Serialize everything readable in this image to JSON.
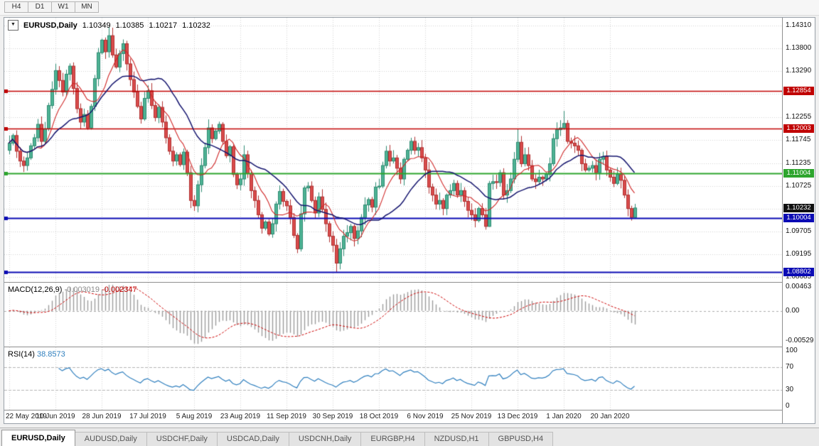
{
  "toolbar": {
    "timeframes": [
      "H4",
      "D1",
      "W1",
      "MN"
    ]
  },
  "chart": {
    "symbol_label": "EURUSD,Daily",
    "open": "1.10349",
    "high": "1.10385",
    "low": "1.10217",
    "close": "1.10232",
    "dropdown_icon": "▼",
    "price_axis_labels": [
      "1.14310",
      "1.13800",
      "1.13290",
      "1.12780",
      "1.12255",
      "1.11745",
      "1.11235",
      "1.10725",
      "1.09705",
      "1.09195",
      "1.08685"
    ],
    "levels": [
      {
        "price": 1.12854,
        "label": "1.12854",
        "color": "#c00000",
        "width": 1.5
      },
      {
        "price": 1.12003,
        "label": "1.12003",
        "color": "#c00000",
        "width": 1.5
      },
      {
        "price": 1.11004,
        "label": "1.11004",
        "color": "#2da52d",
        "width": 2
      },
      {
        "price": 1.10004,
        "label": "1.10004",
        "color": "#0b0bb4",
        "width": 2
      },
      {
        "price": 1.08802,
        "label": "1.08802",
        "color": "#0b0bb4",
        "width": 2
      }
    ],
    "current_price": {
      "price": 1.10232,
      "label": "1.10232",
      "badge_color": "#101010"
    }
  },
  "macd": {
    "name": "MACD(12,26,9)",
    "macd_value": "-0.003019",
    "signal_value": "-0.002347",
    "axis_labels": [
      "0.00463",
      "0.00",
      "-0.00529"
    ],
    "fast": 12,
    "slow": 26,
    "signal": 9,
    "histogram_color": "#9c9c9c",
    "signal_color": "#cc0000"
  },
  "rsi": {
    "name": "RSI(14)",
    "value": "38.8573",
    "axis_labels": [
      "100",
      "70",
      "30",
      "0"
    ],
    "period": 14,
    "levels": [
      70,
      30
    ],
    "line_color": "#2f7fbe"
  },
  "bottom_tabs": [
    {
      "label": "EURUSD,Daily",
      "active": true
    },
    {
      "label": "AUDUSD,Daily",
      "active": false
    },
    {
      "label": "USDCHF,Daily",
      "active": false
    },
    {
      "label": "USDCAD,Daily",
      "active": false
    },
    {
      "label": "USDCNH,Daily",
      "active": false
    },
    {
      "label": "EURGBP,H4",
      "active": false
    },
    {
      "label": "NZDUSD,H1",
      "active": false
    },
    {
      "label": "GBPUSD,H4",
      "active": false
    }
  ],
  "chart_data": {
    "type": "candlestick",
    "symbol": "EURUSD",
    "timeframe": "Daily",
    "ylim": [
      1.0858,
      1.1448
    ],
    "price_gridlines": [
      1.1431,
      1.138,
      1.1329,
      1.1278,
      1.12255,
      1.11745,
      1.11235,
      1.10725,
      1.10215,
      1.09705,
      1.09195,
      1.08685
    ],
    "x_labels": [
      "22 May 2019",
      "10 Jun 2019",
      "28 Jun 2019",
      "17 Jul 2019",
      "5 Aug 2019",
      "23 Aug 2019",
      "11 Sep 2019",
      "30 Sep 2019",
      "18 Oct 2019",
      "6 Nov 2019",
      "25 Nov 2019",
      "13 Dec 2019",
      "1 Jan 2020",
      "20 Jan 2020"
    ],
    "x_label_days": [
      0,
      13,
      26,
      39,
      52,
      65,
      78,
      91,
      104,
      117,
      130,
      143,
      156,
      169
    ],
    "first_open": 1.1152,
    "closes": [
      1.1168,
      1.1185,
      1.115,
      1.1128,
      1.1118,
      1.1135,
      1.1162,
      1.118,
      1.121,
      1.1172,
      1.12,
      1.1252,
      1.1288,
      1.133,
      1.1308,
      1.1282,
      1.1322,
      1.134,
      1.129,
      1.1245,
      1.1215,
      1.1232,
      1.1202,
      1.125,
      1.1312,
      1.137,
      1.1398,
      1.1372,
      1.1408,
      1.1365,
      1.1338,
      1.1368,
      1.139,
      1.1345,
      1.131,
      1.1282,
      1.125,
      1.1222,
      1.1268,
      1.1285,
      1.1252,
      1.1225,
      1.1248,
      1.1215,
      1.118,
      1.115,
      1.1128,
      1.1142,
      1.112,
      1.1148,
      1.1102,
      1.104,
      1.1028,
      1.1075,
      1.1118,
      1.1158,
      1.1202,
      1.1178,
      1.1195,
      1.121,
      1.1172,
      1.114,
      1.116,
      1.1098,
      1.1075,
      1.1088,
      1.1142,
      1.11,
      1.1062,
      1.104,
      1.1008,
      1.0978,
      1.0992,
      1.0965,
      1.0988,
      1.1032,
      1.106,
      1.1038,
      1.1028,
      1.1002,
      1.0962,
      1.0932,
      1.101,
      1.1068,
      1.1072,
      1.104,
      1.1012,
      1.1048,
      1.102,
      1.0988,
      1.096,
      1.094,
      1.09,
      1.0932,
      1.096,
      1.0968,
      1.0982,
      1.0955,
      1.0972,
      1.1002,
      1.103,
      1.1042,
      1.1025,
      1.107,
      1.1072,
      1.1118,
      1.115,
      1.1128,
      1.1135,
      1.1112,
      1.1088,
      1.1132,
      1.1152,
      1.1172,
      1.1152,
      1.1158,
      1.1135,
      1.1108,
      1.107,
      1.1052,
      1.1032,
      1.104,
      1.1022,
      1.1052,
      1.1062,
      1.1078,
      1.1052,
      1.1062,
      1.1038,
      1.1018,
      1.1008,
      1.0995,
      1.1022,
      1.1008,
      1.0982,
      1.1078,
      1.1082,
      1.108,
      1.1102,
      1.1052,
      1.1062,
      1.1088,
      1.1132,
      1.117,
      1.1122,
      1.1142,
      1.1118,
      1.1088,
      1.1082,
      1.1092,
      1.1088,
      1.1098,
      1.1122,
      1.1178,
      1.1198,
      1.1202,
      1.1212,
      1.1172,
      1.1168,
      1.1162,
      1.1152,
      1.1122,
      1.1108,
      1.1112,
      1.1118,
      1.1102,
      1.1132,
      1.1138,
      1.1108,
      1.1092,
      1.1078,
      1.1098,
      1.1085,
      1.1052,
      1.1022,
      1.1002,
      1.10232
    ],
    "wick_overrides": {
      "8": {
        "h": 1.1222
      },
      "17": {
        "h": 1.1346
      },
      "28": {
        "h": 1.1428
      },
      "51": {
        "l": 1.1023
      },
      "56": {
        "h": 1.1221
      },
      "66": {
        "h": 1.1163
      },
      "82": {
        "h": 1.1031,
        "l": 1.0926
      },
      "92": {
        "l": 1.0879
      },
      "93": {
        "l": 1.0886
      },
      "113": {
        "h": 1.118
      },
      "135": {
        "l": 1.0981
      },
      "143": {
        "h": 1.1199
      },
      "156": {
        "h": 1.124
      },
      "175": {
        "l": 1.0995
      },
      "176": {
        "l": 1.0999
      }
    },
    "bull_color": "#4fb394",
    "bull_border": "#2e8b72",
    "bear_color": "#d94c4c",
    "bear_border": "#b03030",
    "ma_fast": {
      "period": 8,
      "color": "#d02828"
    },
    "ma_slow": {
      "period": 20,
      "color": "#14146e"
    },
    "grid_color": "#d2d2d2"
  }
}
